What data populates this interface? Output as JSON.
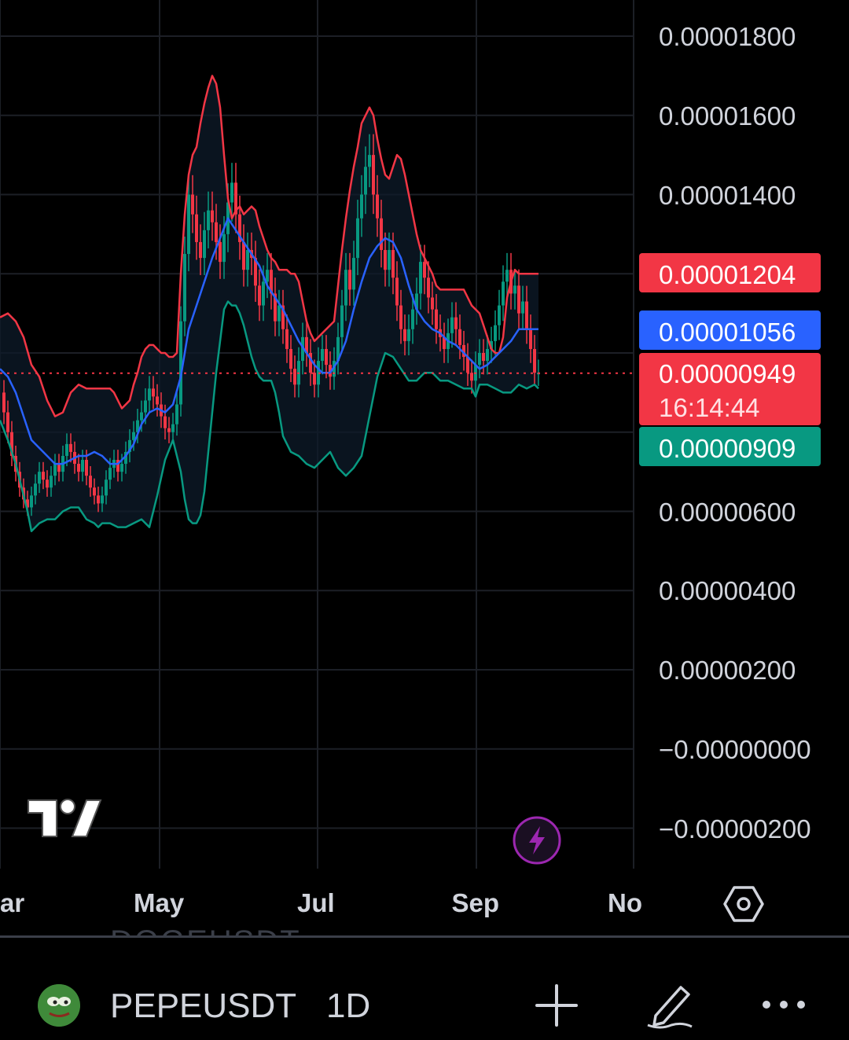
{
  "chart_data": {
    "type": "line",
    "symbol": "PEPEUSDT",
    "interval": "1D",
    "indicator": "Bollinger Bands",
    "x_tick_labels": [
      "ar",
      "May",
      "Jul",
      "Sep",
      "No"
    ],
    "y_tick_labels": [
      "0.00001800",
      "0.00001600",
      "0.00001400",
      "0.00000600",
      "0.00000400",
      "0.00000200",
      "−0.00000000",
      "−0.00000200"
    ],
    "ylim": [
      -2.5e-06,
      1.88e-05
    ],
    "grid": true,
    "price_badges": {
      "upper_band": {
        "value": "0.00001204",
        "color": "#f23645"
      },
      "middle_band": {
        "value": "0.00001056",
        "color": "#2962ff"
      },
      "last_price": {
        "value": "0.00000949",
        "countdown": "16:14:44",
        "color": "#f23645"
      },
      "lower_band": {
        "value": "0.00000909",
        "color": "#089981"
      }
    },
    "last_price_value": 9.49e-06,
    "series": [
      {
        "name": "upper",
        "color": "#f23645",
        "x": [
          0,
          10,
          20,
          30,
          40,
          50,
          60,
          70,
          80,
          90,
          100,
          110,
          120,
          130,
          140,
          145,
          150,
          155,
          160,
          165,
          170,
          175,
          180,
          185,
          190,
          195,
          200,
          205,
          210,
          215,
          220,
          225,
          230,
          235,
          240,
          245,
          250,
          255,
          260,
          265,
          270,
          275,
          280,
          285,
          290,
          295,
          300,
          305,
          310,
          315,
          320,
          325,
          330,
          335,
          340,
          345,
          350,
          355,
          360,
          365,
          370,
          375,
          380,
          385,
          390,
          395,
          400,
          405,
          410,
          415,
          420,
          425,
          430,
          435,
          440,
          445,
          450,
          455,
          460,
          465,
          470,
          475,
          480,
          485,
          490,
          495,
          500,
          505,
          510,
          515,
          520,
          525,
          530,
          535,
          540,
          545,
          550,
          555,
          560,
          565,
          570,
          575,
          580,
          585,
          590,
          595,
          600,
          605,
          610,
          615,
          620,
          625,
          630,
          635,
          640,
          645,
          650,
          655,
          660,
          665,
          670,
          675,
          680,
          685
        ],
        "values": [
          1.09e-05,
          1.1e-05,
          1.08e-05,
          1.04e-05,
          9.7e-06,
          9.4e-06,
          8.8e-06,
          8.4e-06,
          8.5e-06,
          9e-06,
          9.2e-06,
          9.1e-06,
          9.1e-06,
          9.1e-06,
          9.1e-06,
          9e-06,
          8.8e-06,
          8.6e-06,
          8.7e-06,
          8.8e-06,
          9.2e-06,
          9.5e-06,
          9.9e-06,
          1.01e-05,
          1.02e-05,
          1.02e-05,
          1.01e-05,
          1e-05,
          1e-05,
          9.9e-06,
          9.9e-06,
          1e-05,
          1.2e-05,
          1.35e-05,
          1.45e-05,
          1.5e-05,
          1.52e-05,
          1.58e-05,
          1.63e-05,
          1.67e-05,
          1.7e-05,
          1.68e-05,
          1.62e-05,
          1.5e-05,
          1.39e-05,
          1.34e-05,
          1.36e-05,
          1.37e-05,
          1.35e-05,
          1.36e-05,
          1.37e-05,
          1.36e-05,
          1.32e-05,
          1.29e-05,
          1.26e-05,
          1.24e-05,
          1.23e-05,
          1.21e-05,
          1.21e-05,
          1.21e-05,
          1.2e-05,
          1.2e-05,
          1.18e-05,
          1.13e-05,
          1.08e-05,
          1.05e-05,
          1.03e-05,
          1.04e-05,
          1.05e-05,
          1.06e-05,
          1.07e-05,
          1.08e-05,
          1.17e-05,
          1.26e-05,
          1.34e-05,
          1.41e-05,
          1.47e-05,
          1.52e-05,
          1.58e-05,
          1.6e-05,
          1.62e-05,
          1.6e-05,
          1.54e-05,
          1.49e-05,
          1.45e-05,
          1.44e-05,
          1.47e-05,
          1.5e-05,
          1.49e-05,
          1.45e-05,
          1.4e-05,
          1.35e-05,
          1.3e-05,
          1.26e-05,
          1.24e-05,
          1.22e-05,
          1.2e-05,
          1.17e-05,
          1.16e-05,
          1.16e-05,
          1.16e-05,
          1.16e-05,
          1.16e-05,
          1.16e-05,
          1.16e-05,
          1.14e-05,
          1.12e-05,
          1.11e-05,
          1.1e-05,
          1.07e-05,
          1.04e-05,
          1.01e-05,
          1e-05,
          1e-05,
          1.04e-05,
          1.14e-05,
          1.18e-05,
          1.21e-05,
          1.2e-05,
          1.2e-05,
          1.2e-05,
          1.2e-05,
          1.2e-05,
          1.2e-05
        ]
      },
      {
        "name": "basis",
        "color": "#2962ff",
        "x": [
          0,
          10,
          20,
          30,
          40,
          50,
          60,
          70,
          80,
          90,
          100,
          110,
          120,
          130,
          140,
          150,
          160,
          170,
          180,
          190,
          200,
          210,
          220,
          230,
          240,
          250,
          260,
          270,
          280,
          290,
          300,
          310,
          320,
          330,
          340,
          350,
          360,
          370,
          380,
          390,
          400,
          410,
          420,
          430,
          440,
          450,
          460,
          470,
          480,
          490,
          500,
          510,
          520,
          530,
          540,
          550,
          560,
          570,
          580,
          590,
          600,
          610,
          620,
          630,
          640,
          650,
          660,
          670,
          680,
          685
        ],
        "values": [
          9.6e-06,
          9.4e-06,
          9e-06,
          8.4e-06,
          7.8e-06,
          7.6e-06,
          7.4e-06,
          7.2e-06,
          7.2e-06,
          7.3e-06,
          7.4e-06,
          7.4e-06,
          7.5e-06,
          7.4e-06,
          7.2e-06,
          7.2e-06,
          7.4e-06,
          7.7e-06,
          8.2e-06,
          8.5e-06,
          8.6e-06,
          8.5e-06,
          8.7e-06,
          9.4e-06,
          1.06e-05,
          1.12e-05,
          1.18e-05,
          1.24e-05,
          1.29e-05,
          1.34e-05,
          1.31e-05,
          1.28e-05,
          1.25e-05,
          1.22e-05,
          1.17e-05,
          1.14e-05,
          1.11e-05,
          1.07e-05,
          1.03e-05,
          1e-05,
          9.7e-06,
          9.5e-06,
          9.5e-06,
          9.8e-06,
          1.03e-05,
          1.11e-05,
          1.18e-05,
          1.24e-05,
          1.27e-05,
          1.29e-05,
          1.28e-05,
          1.24e-05,
          1.17e-05,
          1.11e-05,
          1.08e-05,
          1.06e-05,
          1.05e-05,
          1.03e-05,
          1.02e-05,
          1e-05,
          9.8e-06,
          9.6e-06,
          9.7e-06,
          9.9e-06,
          1.01e-05,
          1.03e-05,
          1.06e-05,
          1.06e-05,
          1.06e-05,
          1.06e-05
        ]
      },
      {
        "name": "lower",
        "color": "#089981",
        "x": [
          0,
          10,
          20,
          30,
          35,
          40,
          50,
          60,
          70,
          80,
          90,
          100,
          110,
          120,
          125,
          130,
          140,
          150,
          160,
          170,
          180,
          190,
          200,
          210,
          220,
          230,
          235,
          240,
          245,
          250,
          255,
          260,
          265,
          270,
          275,
          280,
          285,
          290,
          295,
          300,
          305,
          310,
          315,
          320,
          325,
          330,
          335,
          340,
          345,
          350,
          355,
          360,
          370,
          380,
          390,
          400,
          410,
          420,
          430,
          440,
          450,
          460,
          470,
          480,
          490,
          500,
          510,
          520,
          530,
          540,
          550,
          560,
          570,
          580,
          590,
          600,
          605,
          610,
          620,
          630,
          640,
          650,
          660,
          670,
          680,
          685
        ],
        "values": [
          8.3e-06,
          7.8e-06,
          7.2e-06,
          6.4e-06,
          6e-06,
          5.5e-06,
          5.7e-06,
          5.8e-06,
          5.8e-06,
          6e-06,
          6.1e-06,
          6.1e-06,
          5.8e-06,
          5.7e-06,
          5.6e-06,
          5.7e-06,
          5.7e-06,
          5.6e-06,
          5.6e-06,
          5.7e-06,
          5.8e-06,
          5.6e-06,
          6.4e-06,
          7.3e-06,
          7.8e-06,
          7e-06,
          6.3e-06,
          5.8e-06,
          5.7e-06,
          5.7e-06,
          5.9e-06,
          6.5e-06,
          7.5e-06,
          8.5e-06,
          9.5e-06,
          1.03e-05,
          1.11e-05,
          1.13e-05,
          1.12e-05,
          1.12e-05,
          1.1e-05,
          1.07e-05,
          1.03e-05,
          9.9e-06,
          9.6e-06,
          9.4e-06,
          9.3e-06,
          9.3e-06,
          9.3e-06,
          9e-06,
          8.5e-06,
          7.9e-06,
          7.5e-06,
          7.4e-06,
          7.2e-06,
          7.1e-06,
          7.3e-06,
          7.5e-06,
          7.1e-06,
          6.9e-06,
          7.1e-06,
          7.4e-06,
          8.4e-06,
          9.4e-06,
          1e-05,
          9.9e-06,
          9.6e-06,
          9.3e-06,
          9.3e-06,
          9.5e-06,
          9.5e-06,
          9.3e-06,
          9.3e-06,
          9.2e-06,
          9.1e-06,
          9.1e-06,
          8.9e-06,
          9.2e-06,
          9.2e-06,
          9.1e-06,
          9e-06,
          9e-06,
          9.2e-06,
          9.1e-06,
          9.2e-06,
          9.1e-06
        ]
      },
      {
        "name": "close",
        "color": "#c9cdd6",
        "x": [
          0,
          5,
          10,
          15,
          20,
          25,
          30,
          35,
          40,
          45,
          50,
          55,
          60,
          65,
          70,
          75,
          80,
          85,
          90,
          95,
          100,
          105,
          110,
          115,
          120,
          125,
          130,
          135,
          140,
          145,
          150,
          155,
          160,
          165,
          170,
          175,
          180,
          185,
          190,
          195,
          200,
          205,
          210,
          215,
          220,
          225,
          230,
          235,
          240,
          245,
          250,
          255,
          260,
          265,
          270,
          275,
          280,
          285,
          290,
          295,
          300,
          305,
          310,
          315,
          320,
          325,
          330,
          335,
          340,
          345,
          350,
          355,
          360,
          365,
          370,
          375,
          380,
          385,
          390,
          395,
          400,
          405,
          410,
          415,
          420,
          425,
          430,
          435,
          440,
          445,
          450,
          455,
          460,
          465,
          470,
          475,
          480,
          485,
          490,
          495,
          500,
          505,
          510,
          515,
          520,
          525,
          530,
          535,
          540,
          545,
          550,
          555,
          560,
          565,
          570,
          575,
          580,
          585,
          590,
          595,
          600,
          605,
          610,
          615,
          620,
          625,
          630,
          635,
          640,
          645,
          650,
          655,
          660,
          665,
          670,
          675,
          680,
          685
        ],
        "values": [
          9e-06,
          8.5e-06,
          8e-06,
          7.4e-06,
          7e-06,
          6.6e-06,
          6.3e-06,
          6.1e-06,
          6.4e-06,
          6.7e-06,
          7e-06,
          6.8e-06,
          6.6e-06,
          6.9e-06,
          7.2e-06,
          7e-06,
          7.4e-06,
          7.7e-06,
          7.5e-06,
          7.2e-06,
          7e-06,
          7.3e-06,
          6.9e-06,
          6.6e-06,
          6.4e-06,
          6.2e-06,
          6.4e-06,
          6.8e-06,
          7.1e-06,
          7.3e-06,
          7e-06,
          7.2e-06,
          7.5e-06,
          7.8e-06,
          8e-06,
          8.3e-06,
          8.5e-06,
          8.8e-06,
          9.1e-06,
          8.9e-06,
          8.7e-06,
          8.4e-06,
          8.1e-06,
          8e-06,
          8.2e-06,
          8.7e-06,
          1.08e-05,
          1.25e-05,
          1.4e-05,
          1.35e-05,
          1.28e-05,
          1.24e-05,
          1.31e-05,
          1.36e-05,
          1.33e-05,
          1.28e-05,
          1.23e-05,
          1.3e-05,
          1.38e-05,
          1.43e-05,
          1.35e-05,
          1.28e-05,
          1.21e-05,
          1.26e-05,
          1.24e-05,
          1.17e-05,
          1.12e-05,
          1.18e-05,
          1.21e-05,
          1.15e-05,
          1.08e-05,
          1.12e-05,
          1.06e-05,
          1.01e-05,
          9.6e-06,
          9.2e-06,
          9.8e-06,
          1.04e-05,
          1e-05,
          9.5e-06,
          9.2e-06,
          9.8e-06,
          1.01e-05,
          9.7e-06,
          9.4e-06,
          9.8e-06,
          1.04e-05,
          1.12e-05,
          1.21e-05,
          1.16e-05,
          1.24e-05,
          1.34e-05,
          1.4e-05,
          1.47e-05,
          1.5e-05,
          1.4e-05,
          1.34e-05,
          1.26e-05,
          1.21e-05,
          1.26e-05,
          1.19e-05,
          1.12e-05,
          1.06e-05,
          1.03e-05,
          1.06e-05,
          1.11e-05,
          1.15e-05,
          1.23e-05,
          1.19e-05,
          1.14e-05,
          1.11e-05,
          1.06e-05,
          1.04e-05,
          1.01e-05,
          1.05e-05,
          1.09e-05,
          1.06e-05,
          1.02e-05,
          9.9e-06,
          9.5e-06,
          9.3e-06,
          9.7e-06,
          1e-05,
          9.8e-06,
          1.01e-05,
          1.03e-05,
          1.07e-05,
          1.12e-05,
          1.18e-05,
          1.21e-05,
          1.15e-05,
          1.17e-05,
          1.1e-05,
          1.13e-05,
          1.06e-05,
          1.01e-05,
          9.5e-06,
          9.5e-06
        ]
      }
    ]
  },
  "bottom_bar": {
    "symbol": "PEPEUSDT",
    "interval": "1D",
    "ghost_symbol": "DOGEUSDT"
  },
  "icons": {
    "settings": "hexagon-settings-icon",
    "alert": "lightning-icon",
    "add": "plus-icon",
    "draw": "pencil-icon",
    "more": "more-dots-icon",
    "logo": "tradingview-logo",
    "avatar": "pepe-avatar"
  }
}
